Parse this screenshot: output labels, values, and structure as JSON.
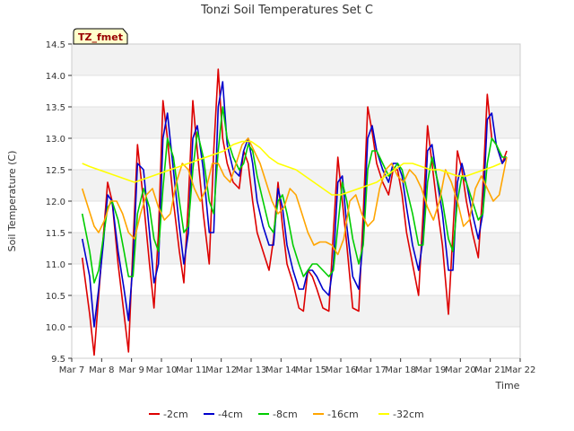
{
  "chart_data": {
    "type": "line",
    "title": "Tonzi Soil Temperatures Set C",
    "xlabel": "Time",
    "ylabel": "Soil Temperature (C)",
    "badge": "TZ_fmet",
    "xlim": [
      7,
      22
    ],
    "ylim": [
      9.5,
      14.5
    ],
    "x_ticks": [
      {
        "value": 7,
        "label": "Mar 7"
      },
      {
        "value": 8,
        "label": "Mar 8"
      },
      {
        "value": 9,
        "label": "Mar 9"
      },
      {
        "value": 10,
        "label": "Mar 10"
      },
      {
        "value": 11,
        "label": "Mar 11"
      },
      {
        "value": 12,
        "label": "Mar 12"
      },
      {
        "value": 13,
        "label": "Mar 13"
      },
      {
        "value": 14,
        "label": "Mar 14"
      },
      {
        "value": 15,
        "label": "Mar 15"
      },
      {
        "value": 16,
        "label": "Mar 16"
      },
      {
        "value": 17,
        "label": "Mar 17"
      },
      {
        "value": 18,
        "label": "Mar 18"
      },
      {
        "value": 19,
        "label": "Mar 19"
      },
      {
        "value": 20,
        "label": "Mar 20"
      },
      {
        "value": 21,
        "label": "Mar 21"
      },
      {
        "value": 22,
        "label": "Mar 22"
      }
    ],
    "y_ticks": [
      {
        "value": 9.5,
        "label": "9.5"
      },
      {
        "value": 10.0,
        "label": "10.0"
      },
      {
        "value": 10.5,
        "label": "10.5"
      },
      {
        "value": 11.0,
        "label": "11.0"
      },
      {
        "value": 11.5,
        "label": "11.5"
      },
      {
        "value": 12.0,
        "label": "12.0"
      },
      {
        "value": 12.5,
        "label": "12.5"
      },
      {
        "value": 13.0,
        "label": "13.0"
      },
      {
        "value": 13.5,
        "label": "13.5"
      },
      {
        "value": 14.0,
        "label": "14.0"
      },
      {
        "value": 14.5,
        "label": "14.5"
      }
    ],
    "grid": "horizontal bands",
    "legend_position": "bottom",
    "series": [
      {
        "name": "-2cm",
        "color": "#dd0000",
        "x": [
          7.35,
          7.6,
          7.75,
          7.9,
          8.05,
          8.2,
          8.35,
          8.55,
          8.75,
          8.9,
          9.05,
          9.2,
          9.4,
          9.6,
          9.75,
          9.9,
          10.05,
          10.2,
          10.4,
          10.6,
          10.75,
          10.9,
          11.05,
          11.2,
          11.4,
          11.6,
          11.75,
          11.9,
          12.05,
          12.2,
          12.4,
          12.6,
          12.75,
          12.9,
          13.05,
          13.2,
          13.4,
          13.6,
          13.75,
          13.9,
          14.05,
          14.2,
          14.4,
          14.6,
          14.75,
          14.9,
          15.05,
          15.2,
          15.4,
          15.6,
          15.75,
          15.9,
          16.05,
          16.2,
          16.4,
          16.6,
          16.75,
          16.9,
          17.05,
          17.2,
          17.4,
          17.6,
          17.75,
          17.9,
          18.05,
          18.2,
          18.4,
          18.6,
          18.75,
          18.9,
          19.05,
          19.2,
          19.4,
          19.6,
          19.75,
          19.9,
          20.05,
          20.2,
          20.4,
          20.6,
          20.75,
          20.9,
          21.05,
          21.2,
          21.4,
          21.55
        ],
        "y": [
          11.1,
          10.2,
          9.55,
          10.5,
          11.4,
          12.3,
          12.0,
          11.0,
          10.2,
          9.6,
          11.3,
          12.9,
          12.0,
          11.0,
          10.3,
          11.5,
          13.6,
          13.0,
          12.0,
          11.2,
          10.7,
          12.0,
          13.6,
          12.8,
          11.8,
          11.0,
          12.8,
          14.1,
          13.0,
          12.6,
          12.3,
          12.2,
          12.8,
          12.6,
          12.0,
          11.5,
          11.2,
          10.9,
          11.4,
          12.3,
          11.6,
          11.0,
          10.7,
          10.3,
          10.25,
          10.9,
          10.8,
          10.6,
          10.3,
          10.25,
          11.5,
          12.7,
          12.0,
          11.3,
          10.3,
          10.25,
          11.8,
          13.5,
          13.1,
          12.6,
          12.3,
          12.1,
          12.5,
          12.5,
          12.1,
          11.5,
          11.0,
          10.5,
          11.8,
          13.2,
          12.6,
          12.0,
          11.3,
          10.2,
          11.5,
          12.8,
          12.5,
          12.0,
          11.5,
          11.1,
          12.2,
          13.7,
          13.0,
          12.9,
          12.6,
          12.8
        ]
      },
      {
        "name": "-4cm",
        "color": "#0000cc",
        "x": [
          7.35,
          7.6,
          7.75,
          7.9,
          8.05,
          8.2,
          8.35,
          8.55,
          8.75,
          8.9,
          9.05,
          9.2,
          9.4,
          9.6,
          9.75,
          9.9,
          10.05,
          10.2,
          10.4,
          10.6,
          10.75,
          10.9,
          11.05,
          11.2,
          11.4,
          11.6,
          11.75,
          11.9,
          12.05,
          12.2,
          12.4,
          12.6,
          12.75,
          12.9,
          13.05,
          13.2,
          13.4,
          13.6,
          13.75,
          13.9,
          14.05,
          14.2,
          14.4,
          14.6,
          14.75,
          14.9,
          15.05,
          15.2,
          15.4,
          15.6,
          15.75,
          15.9,
          16.05,
          16.2,
          16.4,
          16.6,
          16.75,
          16.9,
          17.05,
          17.2,
          17.4,
          17.6,
          17.75,
          17.9,
          18.05,
          18.2,
          18.4,
          18.6,
          18.75,
          18.9,
          19.05,
          19.2,
          19.4,
          19.6,
          19.75,
          19.9,
          20.05,
          20.2,
          20.4,
          20.6,
          20.75,
          20.9,
          21.05,
          21.2,
          21.4,
          21.55
        ],
        "y": [
          11.4,
          10.8,
          10.0,
          10.6,
          11.3,
          12.1,
          12.0,
          11.2,
          10.6,
          10.1,
          11.0,
          12.6,
          12.5,
          11.5,
          10.7,
          11.0,
          13.0,
          13.4,
          12.5,
          11.6,
          11.0,
          11.5,
          13.0,
          13.2,
          12.5,
          11.5,
          11.5,
          13.5,
          13.9,
          12.9,
          12.5,
          12.4,
          12.8,
          13.0,
          12.6,
          12.0,
          11.6,
          11.3,
          11.3,
          12.2,
          11.9,
          11.3,
          10.9,
          10.6,
          10.6,
          10.9,
          10.9,
          10.8,
          10.6,
          10.5,
          11.0,
          12.3,
          12.4,
          11.6,
          10.8,
          10.6,
          11.4,
          13.0,
          13.2,
          12.8,
          12.5,
          12.3,
          12.6,
          12.6,
          12.4,
          11.9,
          11.3,
          10.9,
          11.4,
          12.8,
          12.9,
          12.4,
          11.8,
          10.9,
          10.9,
          12.3,
          12.6,
          12.3,
          11.8,
          11.4,
          11.8,
          13.3,
          13.4,
          12.9,
          12.6,
          12.7
        ]
      },
      {
        "name": "-8cm",
        "color": "#00cc00",
        "x": [
          7.35,
          7.6,
          7.75,
          7.9,
          8.05,
          8.2,
          8.35,
          8.55,
          8.75,
          8.9,
          9.05,
          9.2,
          9.4,
          9.6,
          9.75,
          9.9,
          10.05,
          10.2,
          10.4,
          10.6,
          10.75,
          10.9,
          11.05,
          11.2,
          11.4,
          11.6,
          11.75,
          11.9,
          12.05,
          12.2,
          12.4,
          12.6,
          12.75,
          12.9,
          13.05,
          13.2,
          13.4,
          13.6,
          13.75,
          13.9,
          14.05,
          14.2,
          14.4,
          14.6,
          14.75,
          14.9,
          15.05,
          15.2,
          15.4,
          15.6,
          15.75,
          15.9,
          16.05,
          16.2,
          16.4,
          16.6,
          16.75,
          16.9,
          17.05,
          17.2,
          17.4,
          17.6,
          17.75,
          17.9,
          18.05,
          18.2,
          18.4,
          18.6,
          18.75,
          18.9,
          19.05,
          19.2,
          19.4,
          19.6,
          19.75,
          19.9,
          20.05,
          20.2,
          20.4,
          20.6,
          20.75,
          20.9,
          21.05,
          21.2,
          21.4,
          21.55
        ],
        "y": [
          11.8,
          11.2,
          10.7,
          10.9,
          11.4,
          11.9,
          12.0,
          11.7,
          11.2,
          10.8,
          10.8,
          11.8,
          12.2,
          11.9,
          11.4,
          11.2,
          12.2,
          13.0,
          12.7,
          12.0,
          11.5,
          11.6,
          12.5,
          13.1,
          12.7,
          12.0,
          11.8,
          12.8,
          13.5,
          13.0,
          12.7,
          12.5,
          12.6,
          12.9,
          12.8,
          12.4,
          12.0,
          11.6,
          11.5,
          12.0,
          12.1,
          11.8,
          11.3,
          11.0,
          10.8,
          10.9,
          11.0,
          11.0,
          10.9,
          10.8,
          10.9,
          11.6,
          12.3,
          12.0,
          11.4,
          11.0,
          11.3,
          12.5,
          12.8,
          12.8,
          12.6,
          12.4,
          12.5,
          12.6,
          12.5,
          12.2,
          11.8,
          11.3,
          11.3,
          12.3,
          12.7,
          12.4,
          12.0,
          11.4,
          11.2,
          12.0,
          12.4,
          12.3,
          12.0,
          11.7,
          11.8,
          12.6,
          13.0,
          12.9,
          12.7,
          12.7
        ]
      },
      {
        "name": "-16cm",
        "color": "#ffa500",
        "x": [
          7.35,
          7.55,
          7.75,
          7.9,
          8.1,
          8.3,
          8.5,
          8.7,
          8.9,
          9.1,
          9.3,
          9.5,
          9.7,
          9.9,
          10.1,
          10.3,
          10.5,
          10.7,
          10.9,
          11.1,
          11.3,
          11.5,
          11.7,
          11.9,
          12.1,
          12.3,
          12.5,
          12.7,
          12.9,
          13.1,
          13.3,
          13.5,
          13.7,
          13.9,
          14.1,
          14.3,
          14.5,
          14.7,
          14.9,
          15.1,
          15.3,
          15.5,
          15.7,
          15.9,
          16.1,
          16.3,
          16.5,
          16.7,
          16.9,
          17.1,
          17.3,
          17.5,
          17.7,
          17.9,
          18.1,
          18.3,
          18.5,
          18.7,
          18.9,
          19.1,
          19.3,
          19.5,
          19.7,
          19.9,
          20.1,
          20.3,
          20.5,
          20.7,
          20.9,
          21.1,
          21.3,
          21.55
        ],
        "y": [
          12.2,
          11.9,
          11.6,
          11.5,
          11.7,
          12.0,
          12.0,
          11.8,
          11.5,
          11.4,
          11.8,
          12.1,
          12.2,
          11.9,
          11.7,
          11.8,
          12.3,
          12.6,
          12.5,
          12.2,
          12.0,
          12.2,
          12.6,
          12.6,
          12.4,
          12.3,
          12.6,
          12.9,
          13.0,
          12.8,
          12.6,
          12.3,
          12.0,
          11.8,
          11.9,
          12.2,
          12.1,
          11.8,
          11.5,
          11.3,
          11.35,
          11.35,
          11.3,
          11.15,
          11.4,
          12.0,
          12.1,
          11.8,
          11.6,
          11.7,
          12.2,
          12.5,
          12.6,
          12.4,
          12.3,
          12.5,
          12.4,
          12.2,
          11.9,
          11.7,
          12.0,
          12.5,
          12.3,
          12.0,
          11.6,
          11.7,
          12.2,
          12.4,
          12.2,
          12.0,
          12.1,
          12.7
        ]
      },
      {
        "name": "-32cm",
        "color": "#ffff00",
        "x": [
          7.35,
          7.6,
          7.9,
          8.2,
          8.5,
          8.8,
          9.1,
          9.4,
          9.7,
          10.0,
          10.3,
          10.6,
          10.9,
          11.2,
          11.5,
          11.8,
          12.1,
          12.4,
          12.7,
          13.0,
          13.3,
          13.6,
          13.9,
          14.2,
          14.5,
          14.8,
          15.1,
          15.4,
          15.7,
          16.0,
          16.3,
          16.6,
          16.9,
          17.2,
          17.5,
          17.8,
          18.1,
          18.4,
          18.7,
          19.0,
          19.3,
          19.6,
          19.9,
          20.2,
          20.5,
          20.8,
          21.1,
          21.35
        ],
        "y": [
          12.6,
          12.55,
          12.5,
          12.45,
          12.4,
          12.35,
          12.3,
          12.35,
          12.4,
          12.45,
          12.5,
          12.55,
          12.6,
          12.65,
          12.7,
          12.75,
          12.8,
          12.9,
          12.95,
          12.95,
          12.85,
          12.7,
          12.6,
          12.55,
          12.5,
          12.4,
          12.3,
          12.2,
          12.1,
          12.1,
          12.15,
          12.2,
          12.25,
          12.3,
          12.4,
          12.5,
          12.6,
          12.6,
          12.55,
          12.5,
          12.5,
          12.45,
          12.4,
          12.4,
          12.45,
          12.5,
          12.55,
          12.6
        ]
      }
    ]
  }
}
